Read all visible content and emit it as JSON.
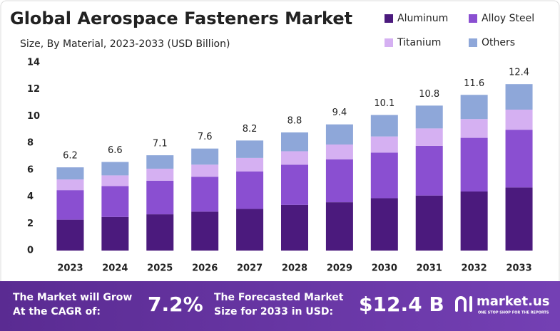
{
  "chart_data": {
    "type": "stacked_bar",
    "title": "Global Aerospace Fasteners Market",
    "subtitle": "Size, By Material, 2023-2033 (USD Billion)",
    "categories": [
      "2023",
      "2024",
      "2025",
      "2026",
      "2027",
      "2028",
      "2029",
      "2030",
      "2031",
      "2032",
      "2033"
    ],
    "series": [
      {
        "name": "Aluminum",
        "color": "#4b1a7d",
        "values": [
          2.3,
          2.5,
          2.7,
          2.9,
          3.1,
          3.4,
          3.6,
          3.9,
          4.1,
          4.4,
          4.7
        ]
      },
      {
        "name": "Alloy Steel",
        "color": "#8a4fd1",
        "values": [
          2.2,
          2.3,
          2.5,
          2.6,
          2.8,
          3.0,
          3.2,
          3.4,
          3.7,
          4.0,
          4.3
        ]
      },
      {
        "name": "Titanium",
        "color": "#d5b0f2",
        "values": [
          0.8,
          0.8,
          0.9,
          0.9,
          1.0,
          1.0,
          1.1,
          1.2,
          1.3,
          1.4,
          1.5
        ]
      },
      {
        "name": "Others",
        "color": "#8ea7d9",
        "values": [
          0.9,
          1.0,
          1.0,
          1.2,
          1.3,
          1.4,
          1.5,
          1.6,
          1.7,
          1.8,
          1.9
        ]
      }
    ],
    "totals": [
      6.2,
      6.6,
      7.1,
      7.6,
      8.2,
      8.8,
      9.4,
      10.1,
      10.8,
      11.6,
      12.4
    ],
    "ylim": [
      0,
      14
    ],
    "yticks": [
      0,
      2,
      4,
      6,
      8,
      10,
      12,
      14
    ],
    "grid": false,
    "legend": "top-right"
  },
  "footer": {
    "cagr_text": [
      "The Market will Grow",
      "At the CAGR of:"
    ],
    "cagr": "7.2%",
    "forecast_text": [
      "The Forecasted Market",
      "Size for 2033 in USD:"
    ],
    "forecast": "$12.4 B",
    "brand": "market.us",
    "tagline": "ONE STOP SHOP FOR THE REPORTS"
  }
}
